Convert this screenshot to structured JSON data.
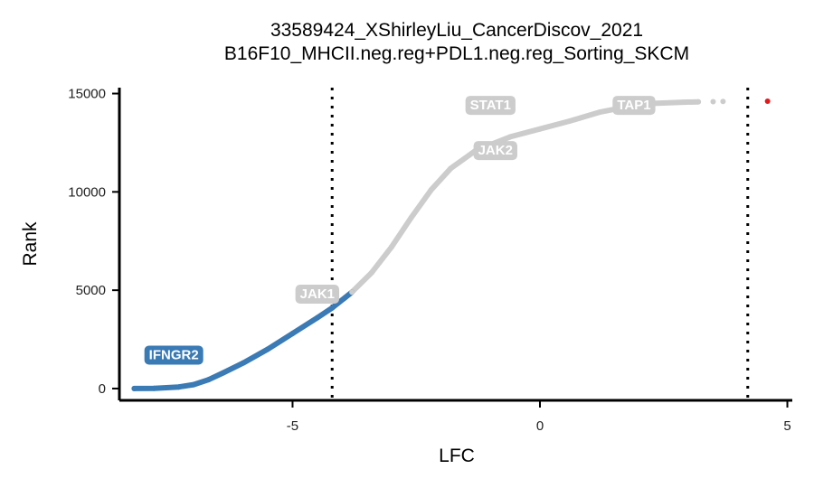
{
  "chart_data": {
    "type": "scatter",
    "title_line1": "33589424_XShirleyLiu_CancerDiscov_2021",
    "title_line2": "B16F10_MHCII.neg.reg+PDL1.neg.reg_Sorting_SKCM",
    "xlabel": "LFC",
    "ylabel": "Rank",
    "xlim": [
      -8.5,
      5.1
    ],
    "ylim": [
      -600,
      15300
    ],
    "x_ticks": [
      -5,
      0,
      5
    ],
    "x_tick_labels": [
      "-5",
      "0",
      "5"
    ],
    "y_ticks": [
      0,
      5000,
      10000,
      15000
    ],
    "y_tick_labels": [
      "0",
      "5000",
      "10000",
      "15000"
    ],
    "thresholds": [
      -4.2,
      4.2
    ],
    "grid": false,
    "legend": "none",
    "colors": {
      "negative": "#3a7ab5",
      "neutral": "#cccccc",
      "positive": "#e31a1c",
      "threshold": "#000000"
    },
    "curve": [
      {
        "lfc": -8.2,
        "rank": 0
      },
      {
        "lfc": -7.8,
        "rank": 10
      },
      {
        "lfc": -7.3,
        "rank": 80
      },
      {
        "lfc": -7.0,
        "rank": 200
      },
      {
        "lfc": -6.7,
        "rank": 450
      },
      {
        "lfc": -6.4,
        "rank": 800
      },
      {
        "lfc": -6.0,
        "rank": 1300
      },
      {
        "lfc": -5.5,
        "rank": 2000
      },
      {
        "lfc": -5.0,
        "rank": 2800
      },
      {
        "lfc": -4.5,
        "rank": 3600
      },
      {
        "lfc": -4.2,
        "rank": 4100
      },
      {
        "lfc": -3.8,
        "rank": 4900
      },
      {
        "lfc": -3.4,
        "rank": 5900
      },
      {
        "lfc": -3.0,
        "rank": 7200
      },
      {
        "lfc": -2.6,
        "rank": 8700
      },
      {
        "lfc": -2.2,
        "rank": 10100
      },
      {
        "lfc": -1.8,
        "rank": 11200
      },
      {
        "lfc": -1.3,
        "rank": 12100
      },
      {
        "lfc": -0.6,
        "rank": 12800
      },
      {
        "lfc": 0.0,
        "rank": 13200
      },
      {
        "lfc": 0.6,
        "rank": 13600
      },
      {
        "lfc": 1.2,
        "rank": 14050
      },
      {
        "lfc": 1.8,
        "rank": 14350
      },
      {
        "lfc": 2.3,
        "rank": 14500
      },
      {
        "lfc": 2.9,
        "rank": 14560
      },
      {
        "lfc": 3.2,
        "rank": 14580
      }
    ],
    "points": [
      {
        "lfc": 3.5,
        "rank": 14590,
        "group": "neutral"
      },
      {
        "lfc": 3.7,
        "rank": 14600,
        "group": "neutral"
      },
      {
        "lfc": 4.6,
        "rank": 14610,
        "group": "positive"
      }
    ],
    "annotations": [
      {
        "gene": "IFNGR2",
        "lfc": -7.4,
        "rank": 1700,
        "group": "negative"
      },
      {
        "gene": "JAK1",
        "lfc": -4.5,
        "rank": 4800,
        "group": "neutral"
      },
      {
        "gene": "STAT1",
        "lfc": -1.0,
        "rank": 14400,
        "group": "neutral"
      },
      {
        "gene": "JAK2",
        "lfc": -0.9,
        "rank": 12100,
        "group": "neutral"
      },
      {
        "gene": "TAP1",
        "lfc": 1.9,
        "rank": 14400,
        "group": "neutral"
      }
    ]
  }
}
